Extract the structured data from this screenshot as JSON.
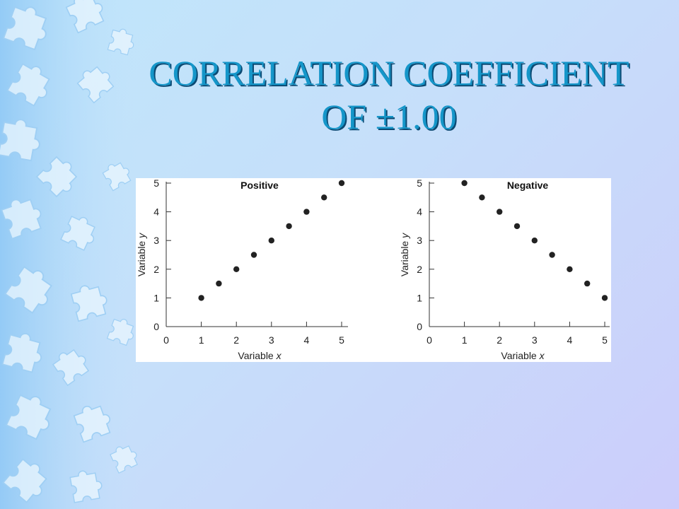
{
  "slide": {
    "title_line1": "CORRELATION COEFFICIENT",
    "title_line2": "OF ±1.00"
  },
  "colors": {
    "title": "#1596c9",
    "title_shadow": "#0c4a73",
    "puzzle": "#eaf6fe",
    "marker": "#222222"
  },
  "chart_data": [
    {
      "type": "scatter",
      "title": "Positive",
      "xlabel": "Variable x",
      "ylabel": "Variable y",
      "xlim": [
        0,
        5
      ],
      "ylim": [
        0,
        5
      ],
      "xticks": [
        0,
        1,
        2,
        3,
        4,
        5
      ],
      "yticks": [
        0,
        1,
        2,
        3,
        4,
        5
      ],
      "x": [
        1,
        1.5,
        2,
        2.5,
        3,
        3.5,
        4,
        4.5,
        5
      ],
      "y": [
        1,
        1.5,
        2,
        2.5,
        3,
        3.5,
        4,
        4.5,
        5
      ]
    },
    {
      "type": "scatter",
      "title": "Negative",
      "xlabel": "Variable x",
      "ylabel": "Variable y",
      "xlim": [
        0,
        5
      ],
      "ylim": [
        0,
        5
      ],
      "xticks": [
        0,
        1,
        2,
        3,
        4,
        5
      ],
      "yticks": [
        0,
        1,
        2,
        3,
        4,
        5
      ],
      "x": [
        1,
        1.5,
        2,
        2.5,
        3,
        3.5,
        4,
        4.5,
        5
      ],
      "y": [
        5,
        4.5,
        4,
        3.5,
        3,
        2.5,
        2,
        1.5,
        1
      ]
    }
  ]
}
